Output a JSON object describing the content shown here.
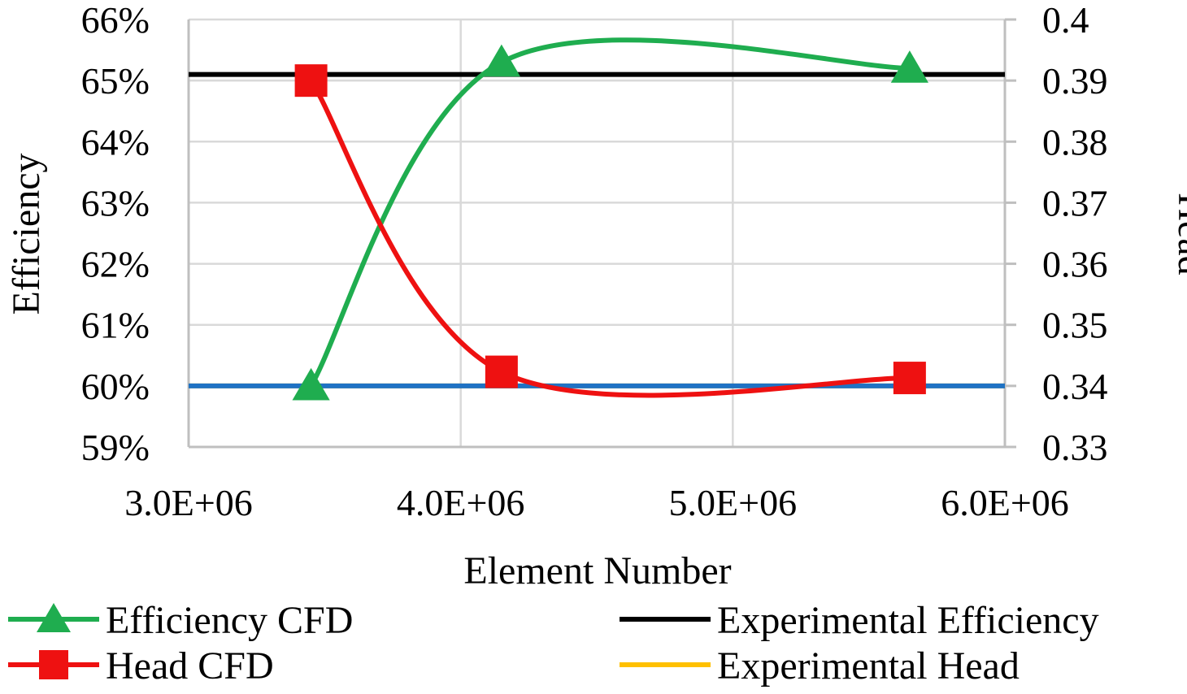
{
  "chart_data": {
    "type": "line",
    "xlabel": "Element Number",
    "ylabel_left": "Efficiency",
    "ylabel_right": "Head",
    "xlim": [
      3000000,
      6000000
    ],
    "ylim_left": [
      0.59,
      0.66
    ],
    "ylim_right": [
      0.33,
      0.4
    ],
    "x_ticks": [
      {
        "value": 3000000,
        "label": "3.0E+06"
      },
      {
        "value": 4000000,
        "label": "4.0E+06"
      },
      {
        "value": 5000000,
        "label": "5.0E+06"
      },
      {
        "value": 6000000,
        "label": "6.0E+06"
      }
    ],
    "y_ticks_left": [
      {
        "value": 0.59,
        "label": "59%"
      },
      {
        "value": 0.6,
        "label": "60%"
      },
      {
        "value": 0.61,
        "label": "61%"
      },
      {
        "value": 0.62,
        "label": "62%"
      },
      {
        "value": 0.63,
        "label": "63%"
      },
      {
        "value": 0.64,
        "label": "64%"
      },
      {
        "value": 0.65,
        "label": "65%"
      },
      {
        "value": 0.66,
        "label": "66%"
      }
    ],
    "y_ticks_right": [
      {
        "value": 0.33,
        "label": "0.33"
      },
      {
        "value": 0.34,
        "label": "0.34"
      },
      {
        "value": 0.35,
        "label": "0.35"
      },
      {
        "value": 0.36,
        "label": "0.36"
      },
      {
        "value": 0.37,
        "label": "0.37"
      },
      {
        "value": 0.38,
        "label": "0.38"
      },
      {
        "value": 0.39,
        "label": "0.39"
      },
      {
        "value": 0.4,
        "label": "0.4"
      }
    ],
    "grid": true,
    "legend_position": "bottom",
    "series": [
      {
        "name": "Efficiency CFD",
        "axis": "left",
        "color": "#1fad4f",
        "marker": "triangle",
        "smooth": true,
        "x": [
          3450000,
          4150000,
          5650000
        ],
        "y": [
          0.6,
          0.653,
          0.652
        ]
      },
      {
        "name": "Head CFD",
        "axis": "right",
        "color": "#ee1111",
        "marker": "square",
        "smooth": true,
        "x": [
          3450000,
          4150000,
          5650000
        ],
        "y": [
          0.39,
          0.3423,
          0.3413
        ]
      },
      {
        "name": "Experimental Efficiency",
        "axis": "left",
        "color": "#000000",
        "marker": "none",
        "constant": 0.651
      },
      {
        "name": "Experimental Head",
        "axis": "right",
        "color": "#ffc000",
        "marker": "none",
        "constant": 0.34
      }
    ],
    "overlay_line": {
      "axis": "right",
      "color": "#1f72c4",
      "constant": 0.34
    }
  }
}
